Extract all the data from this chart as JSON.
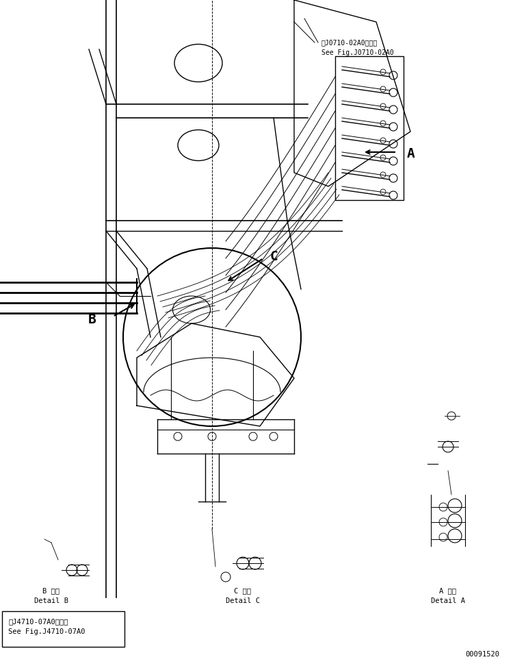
{
  "title": "",
  "bg_color": "#ffffff",
  "line_color": "#000000",
  "fig_width": 7.5,
  "fig_height": 9.72,
  "texts": {
    "see_fig_top_line1": "第J0710-02A0図参照",
    "see_fig_top_line2": "See Fig.J0710-02A0",
    "label_A": "A",
    "label_B": "B",
    "label_C": "C",
    "detail_B_jp": "B 詳細",
    "detail_B_en": "Detail B",
    "detail_C_jp": "C 詳細",
    "detail_C_en": "Detail C",
    "detail_A_jp": "A 詳細",
    "detail_A_en": "Detail A",
    "box_line1": "第J4710-07A0図参照",
    "box_line2": "See Fig.J4710-07A0",
    "part_number": "00091520"
  }
}
